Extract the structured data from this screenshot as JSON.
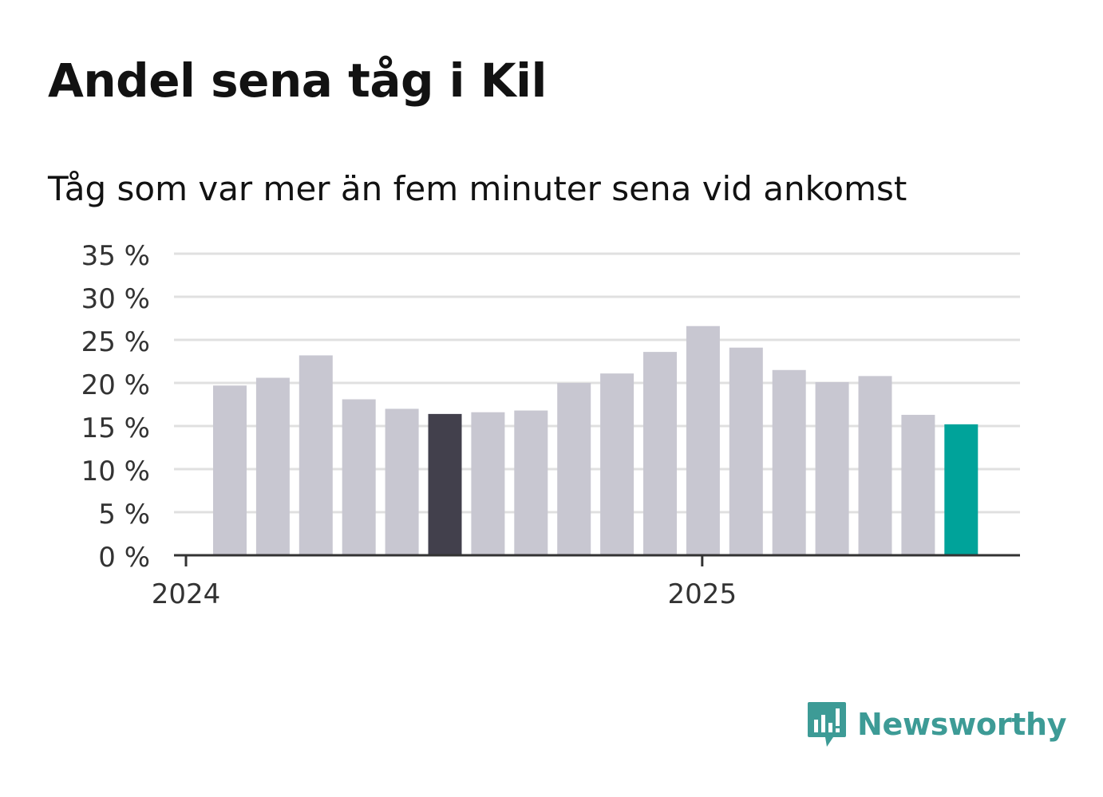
{
  "title": "Andel sena tåg i Kil",
  "subtitle": "Tåg som var mer än fem minuter sena vid ankomst",
  "brand": {
    "name": "Newsworthy",
    "logo_icon": "bar-chart-speech-bubble-icon",
    "color": "#3d9b96"
  },
  "chart_data": {
    "type": "bar",
    "title": "Andel sena tåg i Kil",
    "subtitle": "Tåg som var mer än fem minuter sena vid ankomst",
    "categories": [
      "2024-01",
      "2024-02",
      "2024-03",
      "2024-04",
      "2024-05",
      "2024-06",
      "2024-07",
      "2024-08",
      "2024-09",
      "2024-10",
      "2024-11",
      "2024-12",
      "2025-01",
      "2025-02",
      "2025-03",
      "2025-04",
      "2025-05",
      "2025-06"
    ],
    "values": [
      19.7,
      20.6,
      23.2,
      18.1,
      17.0,
      16.4,
      16.6,
      16.8,
      20.0,
      21.1,
      23.6,
      26.6,
      24.1,
      21.5,
      20.1,
      20.8,
      16.3,
      15.2
    ],
    "ylim": [
      0,
      35
    ],
    "yticks": [
      0,
      5,
      10,
      15,
      20,
      25,
      30,
      35
    ],
    "ytick_labels": [
      "0 %",
      "5 %",
      "10 %",
      "15 %",
      "20 %",
      "25 %",
      "30 %",
      "35 %"
    ],
    "x_tick_labels": [
      {
        "label": "2024",
        "category": "2024-01"
      },
      {
        "label": "2025",
        "category": "2025-01"
      }
    ],
    "grid": true,
    "colors": {
      "default": "#c8c7d1",
      "highlight_year_ago": "#42404c",
      "highlight_latest": "#00a39a",
      "grid": "#e0e0e0",
      "axis": "#333333"
    },
    "highlights": {
      "2024-06": "highlight_year_ago",
      "2025-06": "highlight_latest"
    },
    "xlabel": "",
    "ylabel": ""
  }
}
